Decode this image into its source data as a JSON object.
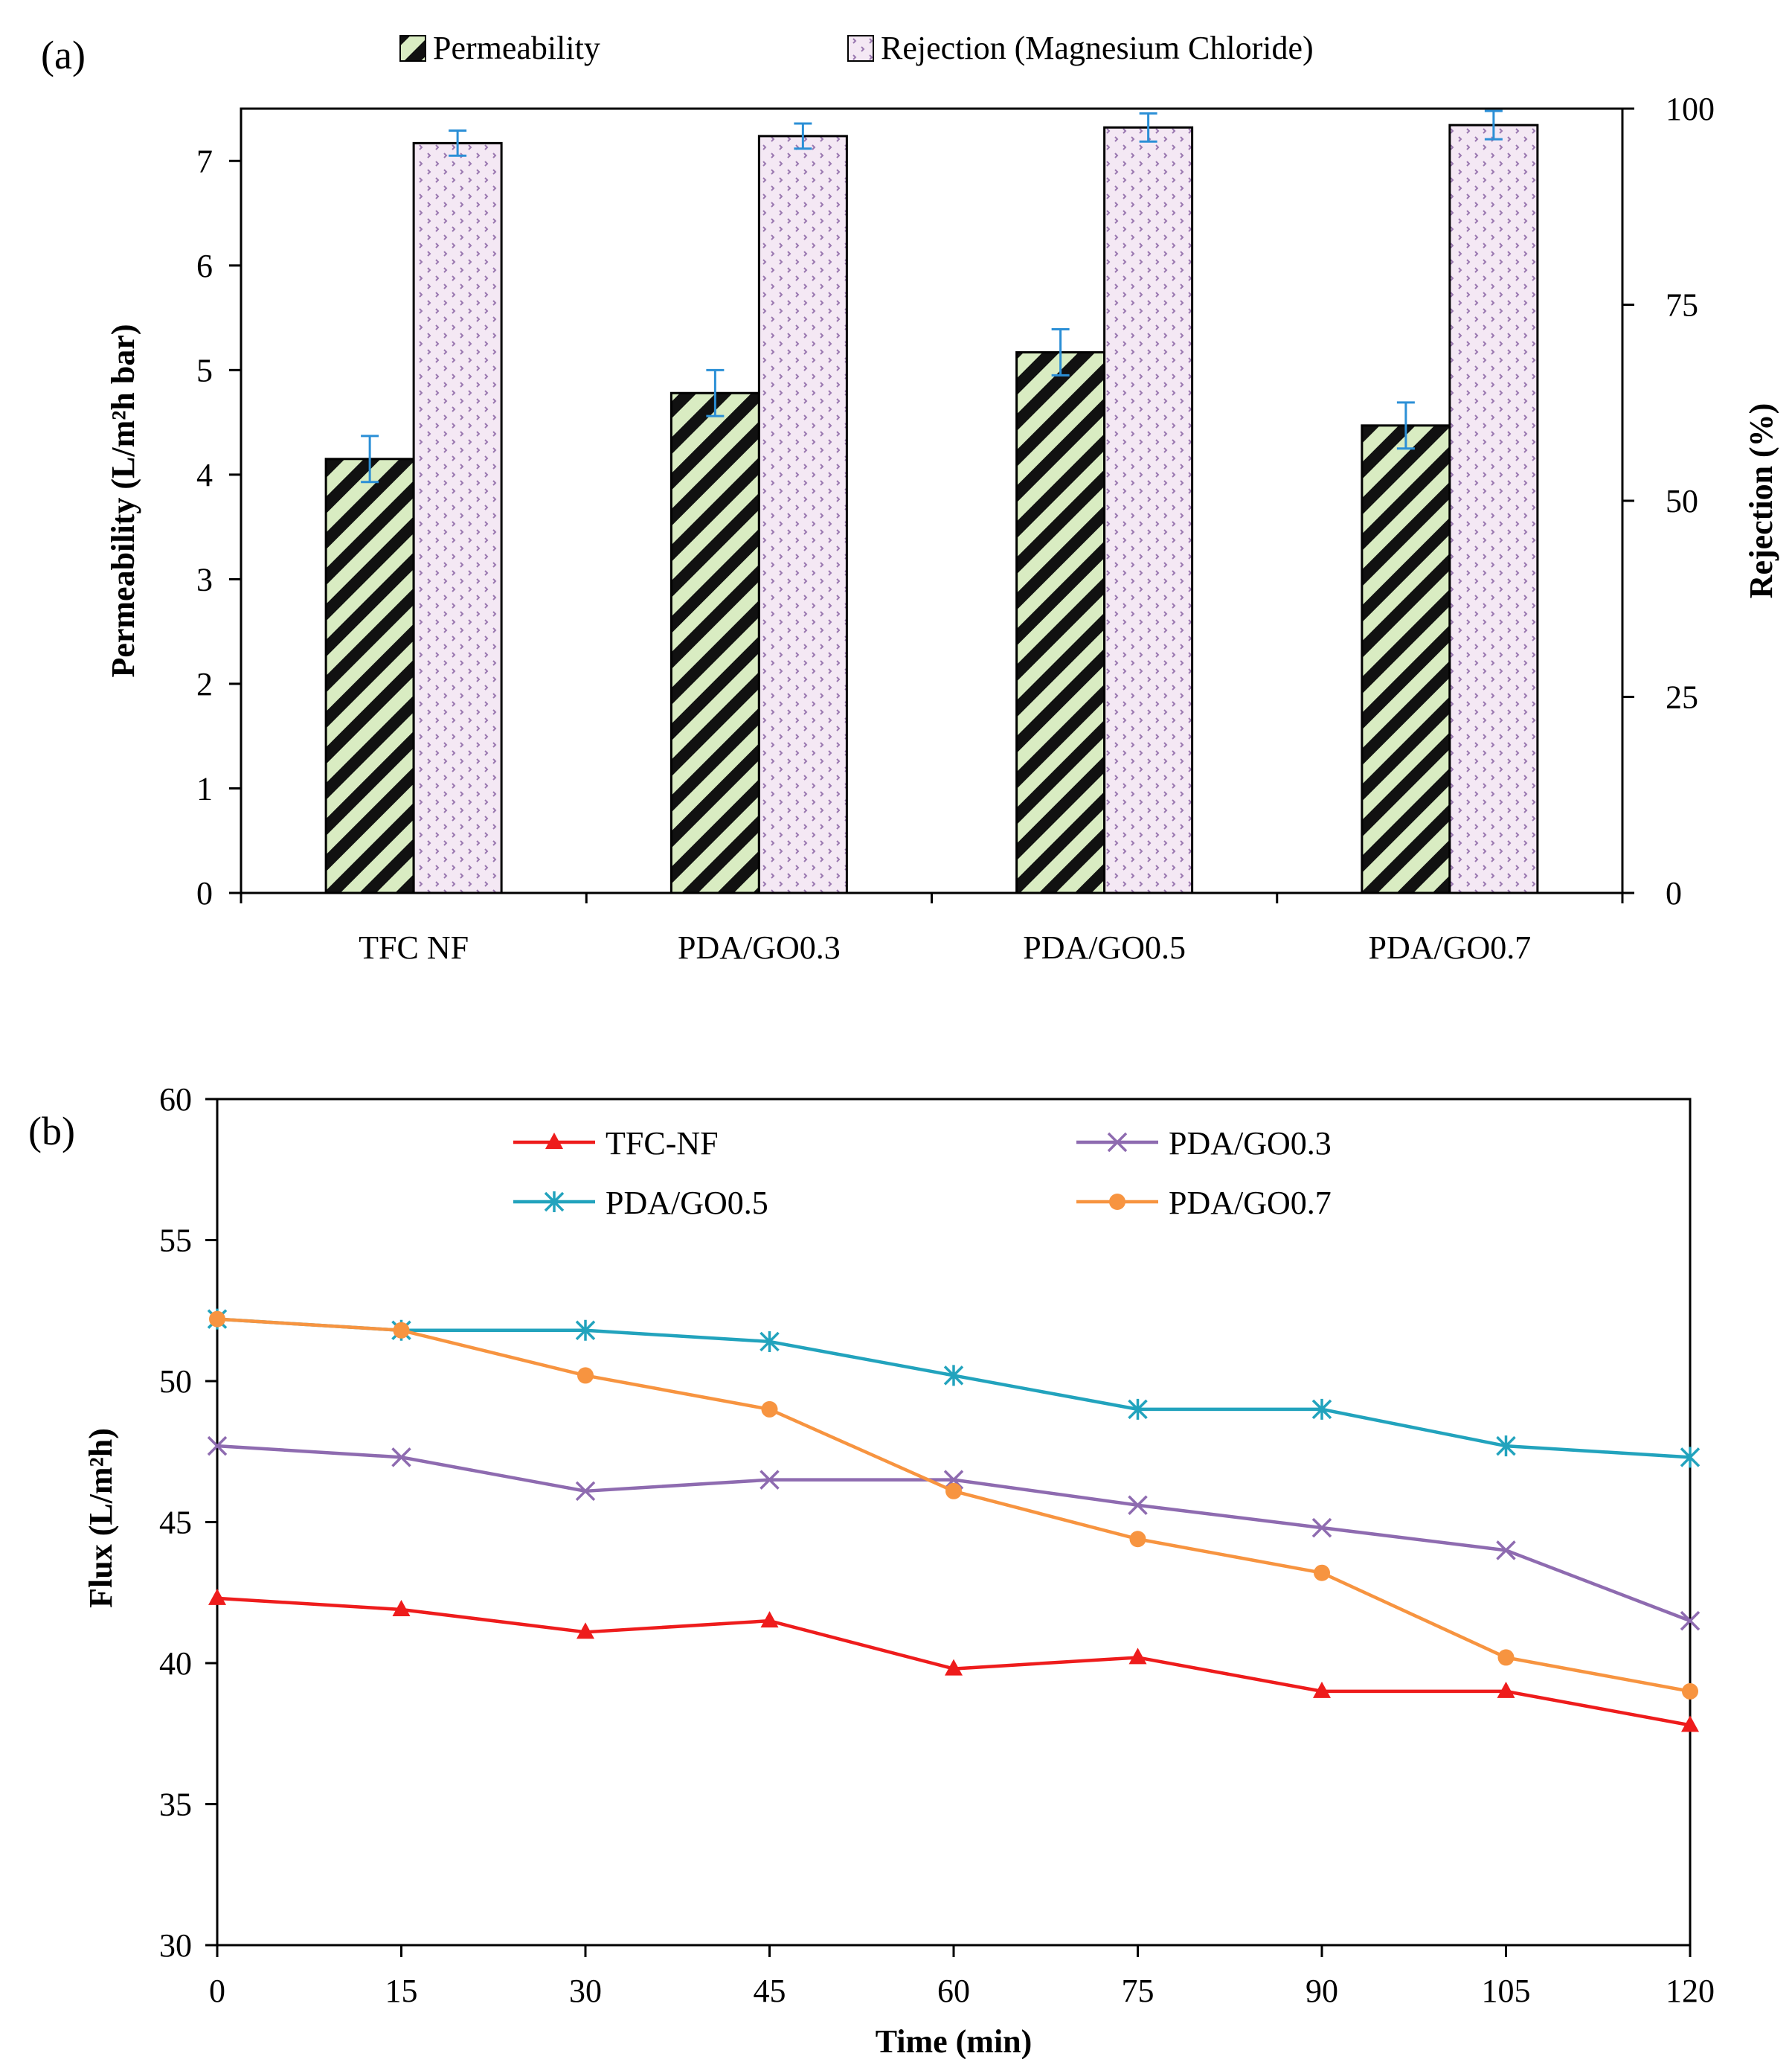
{
  "chart_data": [
    {
      "panel": "(a)",
      "type": "bar",
      "categories": [
        "TFC NF",
        "PDA/GO0.3",
        "PDA/GO0.5",
        "PDA/GO0.7"
      ],
      "series": [
        {
          "name": "Permeability",
          "axis": "left",
          "values": [
            4.15,
            4.78,
            5.17,
            4.47
          ],
          "errors": [
            0.22,
            0.22,
            0.22,
            0.22
          ],
          "color": "#d9ecc2",
          "pattern": "diagonal-hatch"
        },
        {
          "name": "Rejection (Magnesium Chloride)",
          "axis": "right",
          "values": [
            95.6,
            96.5,
            97.6,
            97.9
          ],
          "errors": [
            1.6,
            1.6,
            1.8,
            1.8
          ],
          "color": "#f3e6f3",
          "pattern": "dotted"
        }
      ],
      "ylabel": "Permeability (L/m²h bar)",
      "ylabel2": "Rejection (%)",
      "xlabel": "",
      "ylim": [
        0,
        7.5
      ],
      "yticks": [
        "0",
        "1",
        "2",
        "3",
        "4",
        "5",
        "6",
        "7"
      ],
      "ylim2": [
        0,
        100
      ],
      "yticks2": [
        "0",
        "25",
        "50",
        "75",
        "100"
      ],
      "legend": "top",
      "grid": false
    },
    {
      "panel": "(b)",
      "type": "line",
      "x": [
        0,
        15,
        30,
        45,
        60,
        75,
        90,
        105,
        120
      ],
      "xticks": [
        "0",
        "15",
        "30",
        "45",
        "60",
        "75",
        "90",
        "105",
        "120"
      ],
      "series": [
        {
          "name": "TFC-NF",
          "values": [
            42.3,
            41.9,
            41.1,
            41.5,
            39.8,
            40.2,
            39.0,
            39.0,
            37.8
          ],
          "color": "#ee1c1c",
          "marker": "triangle"
        },
        {
          "name": "PDA/GO0.3",
          "values": [
            47.7,
            47.3,
            46.1,
            46.5,
            46.5,
            45.6,
            44.8,
            44.0,
            41.5
          ],
          "color": "#8e6bb0",
          "marker": "x"
        },
        {
          "name": "PDA/GO0.5",
          "values": [
            52.2,
            51.8,
            51.8,
            51.4,
            50.2,
            49.0,
            49.0,
            47.7,
            47.3
          ],
          "color": "#22a3bd",
          "marker": "asterisk"
        },
        {
          "name": "PDA/GO0.7",
          "values": [
            52.2,
            51.8,
            50.2,
            49.0,
            46.1,
            44.4,
            43.2,
            40.2,
            39.0
          ],
          "color": "#f79440",
          "marker": "circle"
        }
      ],
      "xlabel": "Time (min)",
      "ylabel": "Flux (L/m²h)",
      "ylim": [
        30,
        60
      ],
      "yticks": [
        "30",
        "35",
        "40",
        "45",
        "50",
        "55",
        "60"
      ],
      "xlim": [
        0,
        120
      ],
      "legend": "top-center",
      "grid": false
    }
  ]
}
